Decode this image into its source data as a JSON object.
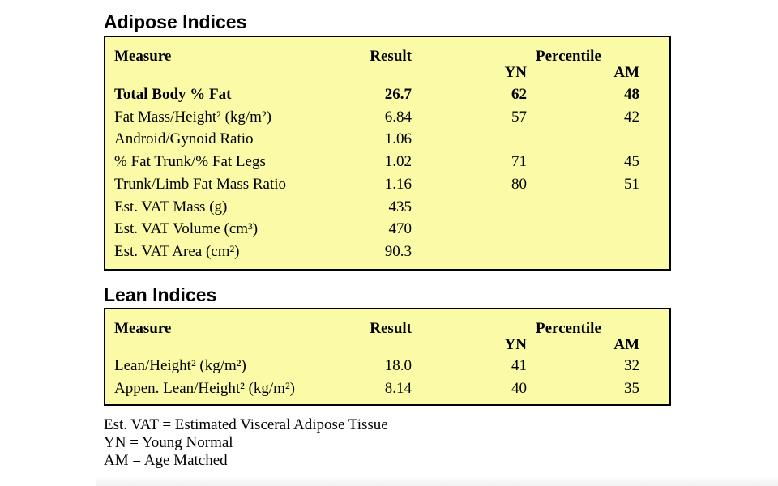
{
  "adipose": {
    "title": "Adipose Indices",
    "headers": {
      "measure": "Measure",
      "result": "Result",
      "percentile": "Percentile",
      "yn": "YN",
      "am": "AM"
    },
    "rows": [
      {
        "measure": "Total Body % Fat",
        "result": "26.7",
        "yn": "62",
        "am": "48"
      },
      {
        "measure": "Fat Mass/Height² (kg/m²)",
        "result": "6.84",
        "yn": "57",
        "am": "42"
      },
      {
        "measure": "Android/Gynoid Ratio",
        "result": "1.06",
        "yn": "",
        "am": ""
      },
      {
        "measure": "% Fat Trunk/% Fat Legs",
        "result": "1.02",
        "yn": "71",
        "am": "45"
      },
      {
        "measure": "Trunk/Limb Fat Mass Ratio",
        "result": "1.16",
        "yn": "80",
        "am": "51"
      },
      {
        "measure": "Est. VAT Mass (g)",
        "result": "435",
        "yn": "",
        "am": ""
      },
      {
        "measure": "Est. VAT Volume (cm³)",
        "result": "470",
        "yn": "",
        "am": ""
      },
      {
        "measure": "Est. VAT Area (cm²)",
        "result": "90.3",
        "yn": "",
        "am": ""
      }
    ]
  },
  "lean": {
    "title": "Lean Indices",
    "headers": {
      "measure": "Measure",
      "result": "Result",
      "percentile": "Percentile",
      "yn": "YN",
      "am": "AM"
    },
    "rows": [
      {
        "measure": "Lean/Height² (kg/m²)",
        "result": "18.0",
        "yn": "41",
        "am": "32"
      },
      {
        "measure": "Appen. Lean/Height² (kg/m²)",
        "result": "8.14",
        "yn": "40",
        "am": "35"
      }
    ]
  },
  "footnotes": [
    "Est. VAT = Estimated Visceral Adipose Tissue",
    "YN = Young Normal",
    "AM = Age Matched"
  ],
  "colors": {
    "panel_background": "#fafaa7",
    "border": "#000000"
  }
}
